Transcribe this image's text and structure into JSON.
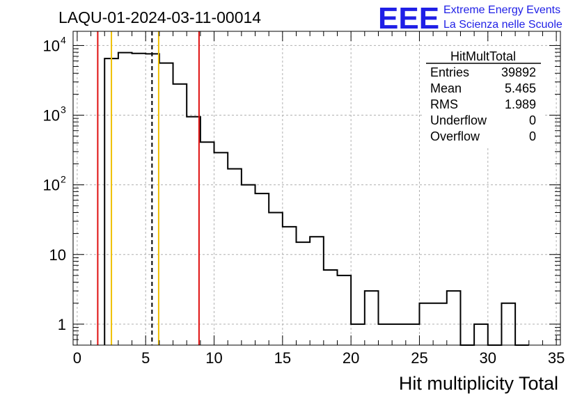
{
  "run_label": "LAQU-01-2024-03-11-00014",
  "logo": {
    "text": "EEE",
    "line1": "Extreme Energy Events",
    "line2": "La Scienza nelle Scuole",
    "color": "#1f1fe6"
  },
  "stats": {
    "title": "HitMultTotal",
    "rows": [
      {
        "label": "Entries",
        "value": "39892"
      },
      {
        "label": "Mean",
        "value": "5.465"
      },
      {
        "label": "RMS",
        "value": "1.989"
      },
      {
        "label": "Underflow",
        "value": "0"
      },
      {
        "label": "Overflow",
        "value": "0"
      }
    ]
  },
  "chart_data": {
    "type": "bar",
    "histogram": true,
    "title": "",
    "xlabel": "Hit multiplicity Total",
    "ylabel": "",
    "xlim": [
      -0.3,
      35.3
    ],
    "ylim": [
      0.5,
      16000
    ],
    "yscale": "log",
    "grid": true,
    "x_ticks": [
      0,
      5,
      10,
      15,
      20,
      25,
      30,
      35
    ],
    "y_ticks": [
      {
        "value": 1,
        "base": "1",
        "exp": ""
      },
      {
        "value": 10,
        "base": "10",
        "exp": ""
      },
      {
        "value": 100,
        "base": "10",
        "exp": "2"
      },
      {
        "value": 1000,
        "base": "10",
        "exp": "3"
      },
      {
        "value": 10000,
        "base": "10",
        "exp": "4"
      }
    ],
    "bins": [
      {
        "x": 2.5,
        "y": 6500
      },
      {
        "x": 3.5,
        "y": 7900
      },
      {
        "x": 4.5,
        "y": 7700
      },
      {
        "x": 5.5,
        "y": 7600
      },
      {
        "x": 6.5,
        "y": 5600
      },
      {
        "x": 7.5,
        "y": 2800
      },
      {
        "x": 8.5,
        "y": 950
      },
      {
        "x": 9.5,
        "y": 410
      },
      {
        "x": 10.5,
        "y": 290
      },
      {
        "x": 11.5,
        "y": 170
      },
      {
        "x": 12.5,
        "y": 100
      },
      {
        "x": 13.5,
        "y": 75
      },
      {
        "x": 14.5,
        "y": 40
      },
      {
        "x": 15.5,
        "y": 25
      },
      {
        "x": 16.5,
        "y": 15
      },
      {
        "x": 17.5,
        "y": 18
      },
      {
        "x": 18.5,
        "y": 6
      },
      {
        "x": 19.5,
        "y": 5
      },
      {
        "x": 20.5,
        "y": 1
      },
      {
        "x": 21.5,
        "y": 3
      },
      {
        "x": 22.5,
        "y": 1
      },
      {
        "x": 23.5,
        "y": 1
      },
      {
        "x": 24.5,
        "y": 1
      },
      {
        "x": 25.5,
        "y": 2
      },
      {
        "x": 26.5,
        "y": 2
      },
      {
        "x": 27.5,
        "y": 3
      },
      {
        "x": 28.5,
        "y": 0
      },
      {
        "x": 29.5,
        "y": 1
      },
      {
        "x": 30.5,
        "y": 0
      },
      {
        "x": 31.5,
        "y": 2
      },
      {
        "x": 32.5,
        "y": 0
      }
    ],
    "bin_width": 1,
    "vlines": [
      {
        "x": 1.5,
        "color": "#e01010",
        "style": "solid"
      },
      {
        "x": 2.5,
        "color": "#f0c000",
        "style": "solid"
      },
      {
        "x": 5.465,
        "color": "#000000",
        "style": "dashed"
      },
      {
        "x": 5.95,
        "color": "#f0c000",
        "style": "solid"
      },
      {
        "x": 8.9,
        "color": "#e01010",
        "style": "solid"
      }
    ]
  }
}
